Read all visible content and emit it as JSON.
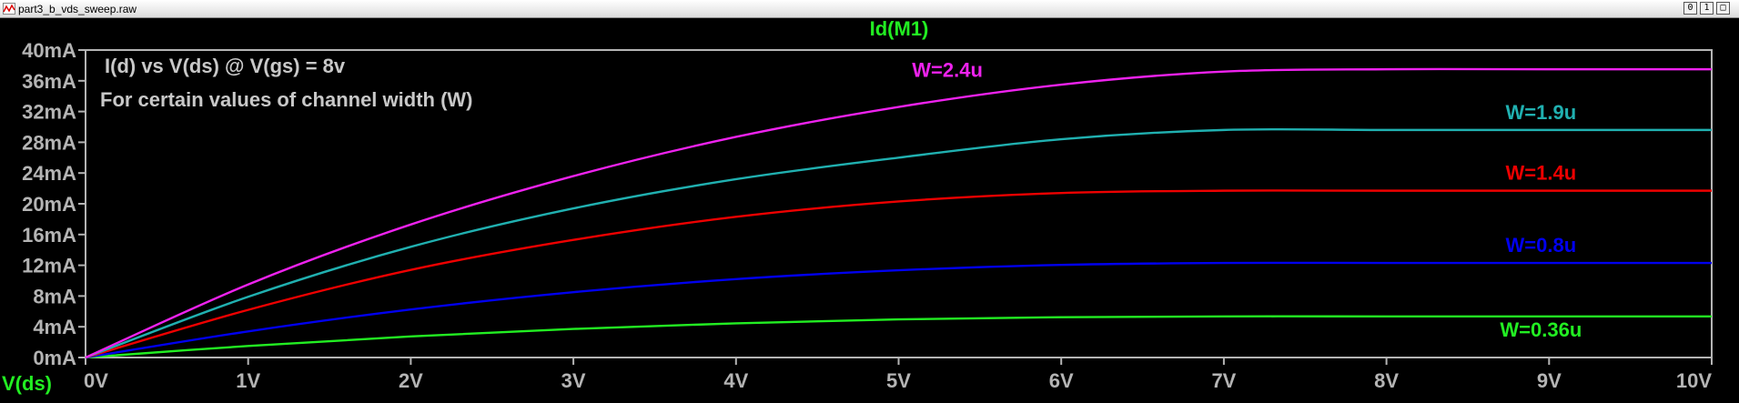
{
  "window": {
    "title": "part3_b_vds_sweep.raw",
    "buttons": [
      "0",
      "1",
      "□"
    ],
    "icon": "waveform-icon"
  },
  "colors": {
    "background": "#000000",
    "axis": "#b4b4b4",
    "title": "#22ee22",
    "annotation": "#c8c8c8"
  },
  "annotations": {
    "line1": "I(d) vs V(ds) @ V(gs) = 8v",
    "line2": "For certain values of channel width (W)"
  },
  "chart_data": {
    "type": "line",
    "title": "Id(M1)",
    "xlabel": "V(ds)",
    "ylabel": "",
    "xlim": [
      0,
      10
    ],
    "ylim": [
      0,
      40
    ],
    "x_unit": "V",
    "y_unit": "mA",
    "x_ticks": [
      "0V",
      "1V",
      "2V",
      "3V",
      "4V",
      "5V",
      "6V",
      "7V",
      "8V",
      "9V",
      "10V"
    ],
    "y_ticks": [
      "0mA",
      "4mA",
      "8mA",
      "12mA",
      "16mA",
      "20mA",
      "24mA",
      "28mA",
      "32mA",
      "36mA",
      "40mA"
    ],
    "grid": false,
    "x": [
      0,
      1,
      2,
      3,
      4,
      5,
      6,
      7,
      8,
      9,
      10
    ],
    "series": [
      {
        "name": "W=0.36u",
        "color": "#22ee22",
        "values": [
          0,
          1.5,
          2.74,
          3.72,
          4.45,
          4.96,
          5.25,
          5.35,
          5.35,
          5.35,
          5.35
        ]
      },
      {
        "name": "W=0.8u",
        "color": "#0000ee",
        "values": [
          0,
          3.4,
          6.25,
          8.5,
          10.2,
          11.35,
          12.05,
          12.3,
          12.3,
          12.3,
          12.3
        ]
      },
      {
        "name": "W=1.4u",
        "color": "#ee0000",
        "values": [
          0,
          6.2,
          11.4,
          15.3,
          18.3,
          20.3,
          21.4,
          21.7,
          21.7,
          21.7,
          21.7
        ]
      },
      {
        "name": "W=1.9u",
        "color": "#20b0b0",
        "values": [
          0,
          7.9,
          14.4,
          19.4,
          23.2,
          26.0,
          28.4,
          29.6,
          29.6,
          29.6,
          29.6
        ]
      },
      {
        "name": "W=2.4u",
        "color": "#ee22ee",
        "values": [
          0,
          9.5,
          17.3,
          23.6,
          28.7,
          32.6,
          35.5,
          37.2,
          37.5,
          37.5,
          37.5
        ]
      }
    ]
  }
}
